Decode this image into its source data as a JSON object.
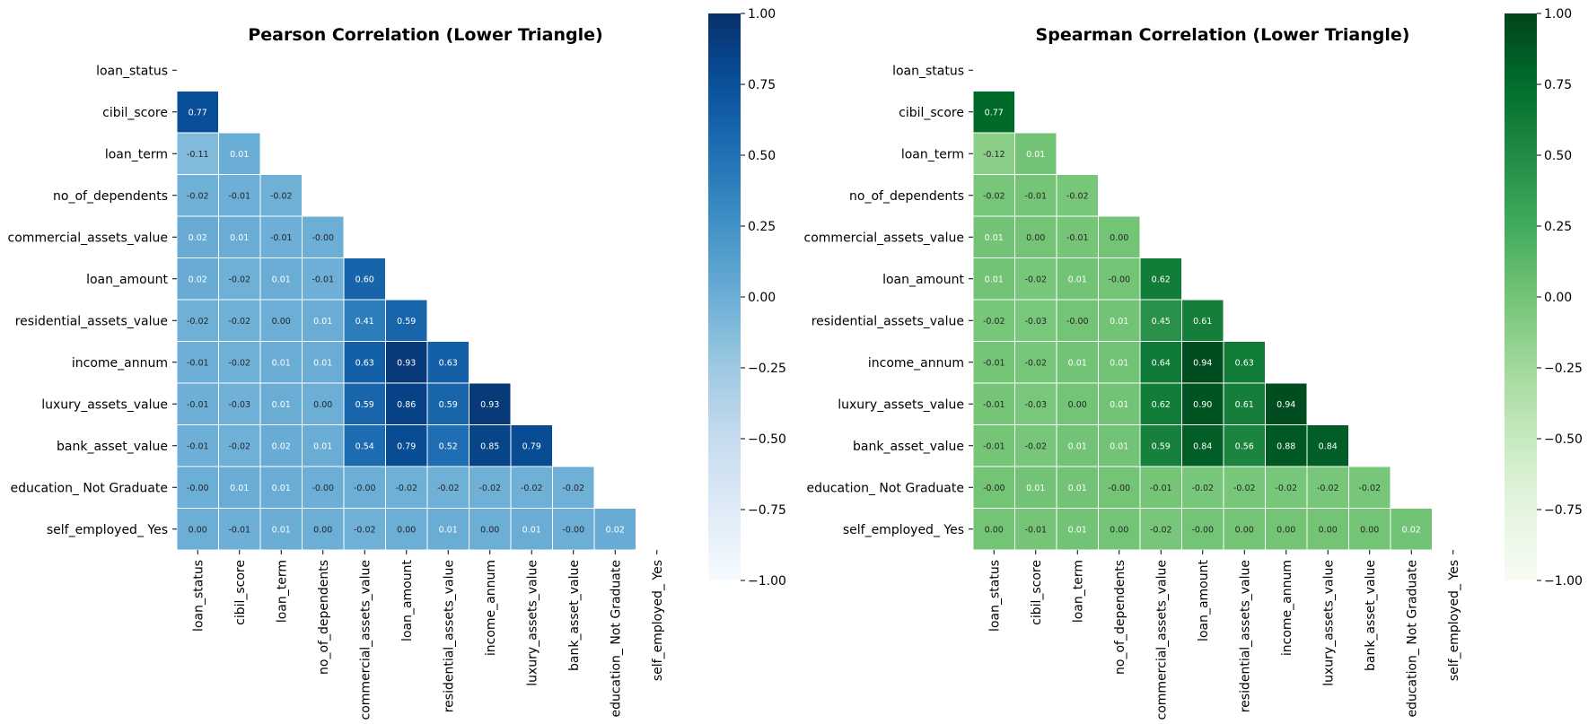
{
  "chart_data": [
    {
      "type": "heatmap",
      "title": "Pearson Correlation (Lower Triangle)",
      "colormap": "Blues",
      "colorbar": {
        "range": [
          -1.0,
          1.0
        ],
        "ticks": [
          "1.00",
          "0.75",
          "0.50",
          "0.25",
          "0.00",
          "−0.25",
          "−0.50",
          "−0.75",
          "−1.00"
        ]
      },
      "row_labels": [
        "loan_status",
        "cibil_score",
        "loan_term",
        "no_of_dependents",
        "commercial_assets_value",
        "loan_amount",
        "residential_assets_value",
        "income_annum",
        "luxury_assets_value",
        "bank_asset_value",
        "education_ Not Graduate",
        "self_employed_ Yes"
      ],
      "col_labels": [
        "loan_status",
        "cibil_score",
        "loan_term",
        "no_of_dependents",
        "commercial_assets_value",
        "loan_amount",
        "residential_assets_value",
        "income_annum",
        "luxury_assets_value",
        "bank_asset_value",
        "education_ Not Graduate",
        "self_employed_ Yes"
      ],
      "mask": "upper triangle incl. diagonal",
      "values": [
        [],
        [
          "0.77"
        ],
        [
          "-0.11",
          "0.01"
        ],
        [
          "-0.02",
          "-0.01",
          "-0.02"
        ],
        [
          "0.02",
          "0.01",
          "-0.01",
          "-0.00"
        ],
        [
          "0.02",
          "-0.02",
          "0.01",
          "-0.01",
          "0.60"
        ],
        [
          "-0.02",
          "-0.02",
          "0.00",
          "0.01",
          "0.41",
          "0.59"
        ],
        [
          "-0.01",
          "-0.02",
          "0.01",
          "0.01",
          "0.63",
          "0.93",
          "0.63"
        ],
        [
          "-0.01",
          "-0.03",
          "0.01",
          "0.00",
          "0.59",
          "0.86",
          "0.59",
          "0.93"
        ],
        [
          "-0.01",
          "-0.02",
          "0.02",
          "0.01",
          "0.54",
          "0.79",
          "0.52",
          "0.85",
          "0.79"
        ],
        [
          "-0.00",
          "0.01",
          "0.01",
          "-0.00",
          "-0.00",
          "-0.02",
          "-0.02",
          "-0.02",
          "-0.02",
          "-0.02"
        ],
        [
          "0.00",
          "-0.01",
          "0.01",
          "0.00",
          "-0.02",
          "0.00",
          "0.01",
          "0.00",
          "0.01",
          "-0.00",
          "0.02"
        ]
      ]
    },
    {
      "type": "heatmap",
      "title": "Spearman Correlation (Lower Triangle)",
      "colormap": "Greens",
      "colorbar": {
        "range": [
          -1.0,
          1.0
        ],
        "ticks": [
          "1.00",
          "0.75",
          "0.50",
          "0.25",
          "0.00",
          "−0.25",
          "−0.50",
          "−0.75",
          "−1.00"
        ]
      },
      "row_labels": [
        "loan_status",
        "cibil_score",
        "loan_term",
        "no_of_dependents",
        "commercial_assets_value",
        "loan_amount",
        "residential_assets_value",
        "income_annum",
        "luxury_assets_value",
        "bank_asset_value",
        "education_ Not Graduate",
        "self_employed_ Yes"
      ],
      "col_labels": [
        "loan_status",
        "cibil_score",
        "loan_term",
        "no_of_dependents",
        "commercial_assets_value",
        "loan_amount",
        "residential_assets_value",
        "income_annum",
        "luxury_assets_value",
        "bank_asset_value",
        "education_ Not Graduate",
        "self_employed_ Yes"
      ],
      "mask": "upper triangle incl. diagonal",
      "values": [
        [],
        [
          "0.77"
        ],
        [
          "-0.12",
          "0.01"
        ],
        [
          "-0.02",
          "-0.01",
          "-0.02"
        ],
        [
          "0.01",
          "0.00",
          "-0.01",
          "0.00"
        ],
        [
          "0.01",
          "-0.02",
          "0.01",
          "-0.00",
          "0.62"
        ],
        [
          "-0.02",
          "-0.03",
          "-0.00",
          "0.01",
          "0.45",
          "0.61"
        ],
        [
          "-0.01",
          "-0.02",
          "0.01",
          "0.01",
          "0.64",
          "0.94",
          "0.63"
        ],
        [
          "-0.01",
          "-0.03",
          "0.00",
          "0.01",
          "0.62",
          "0.90",
          "0.61",
          "0.94"
        ],
        [
          "-0.01",
          "-0.02",
          "0.01",
          "0.01",
          "0.59",
          "0.84",
          "0.56",
          "0.88",
          "0.84"
        ],
        [
          "-0.00",
          "0.01",
          "0.01",
          "-0.00",
          "-0.01",
          "-0.02",
          "-0.02",
          "-0.02",
          "-0.02",
          "-0.02"
        ],
        [
          "0.00",
          "-0.01",
          "0.01",
          "0.00",
          "-0.02",
          "-0.00",
          "0.00",
          "0.00",
          "0.00",
          "0.00",
          "0.02"
        ]
      ]
    }
  ]
}
